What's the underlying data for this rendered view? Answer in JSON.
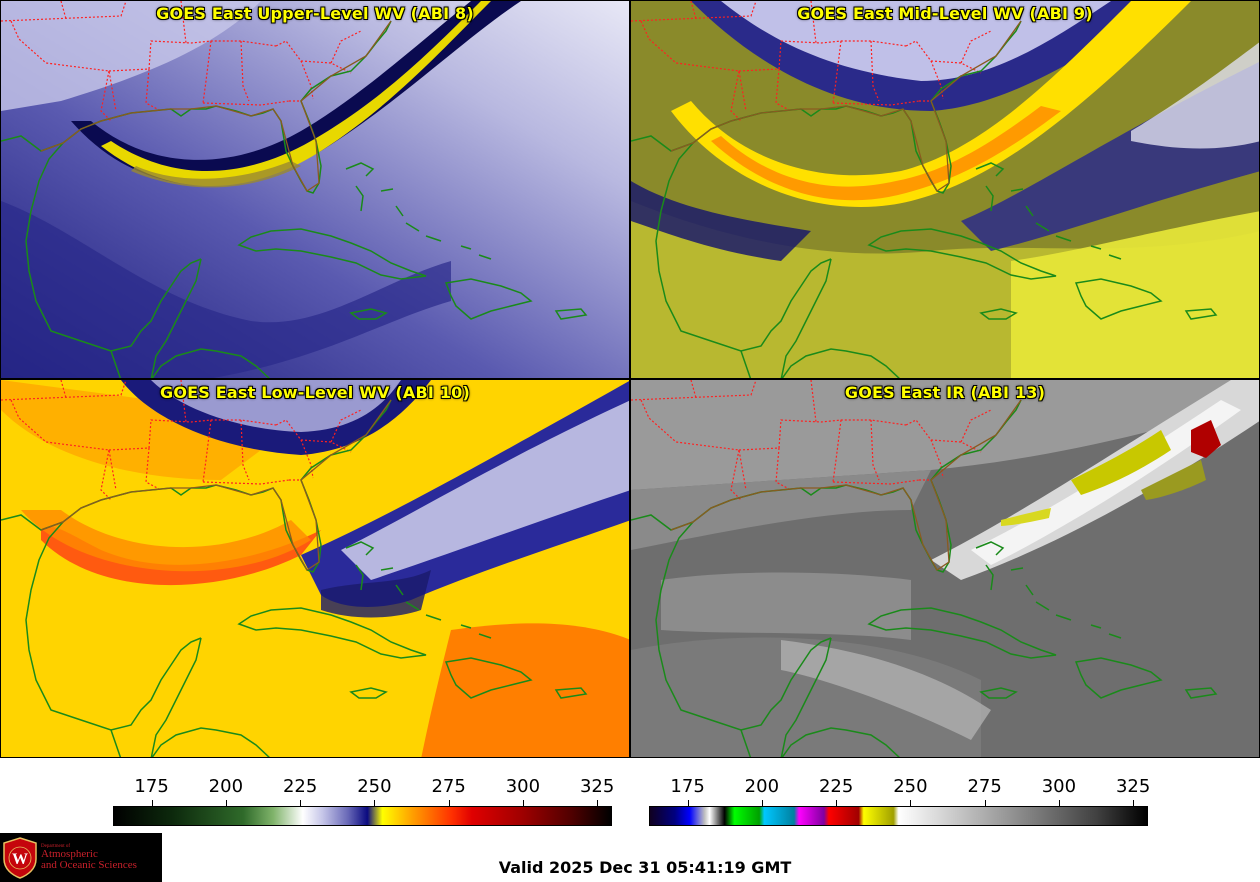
{
  "panels": [
    {
      "id": "upper",
      "title": "GOES East Upper-Level WV (ABI 8)"
    },
    {
      "id": "mid",
      "title": "GOES East Mid-Level WV (ABI 9)"
    },
    {
      "id": "low",
      "title": "GOES East Low-Level WV (ABI 10)"
    },
    {
      "id": "ir",
      "title": "GOES East IR (ABI 13)"
    }
  ],
  "colorbar_wv": {
    "ticks": [
      "175",
      "200",
      "225",
      "250",
      "275",
      "300",
      "325"
    ],
    "range": [
      162,
      330
    ]
  },
  "colorbar_ir": {
    "ticks": [
      "175",
      "200",
      "225",
      "250",
      "275",
      "300",
      "325"
    ],
    "range": [
      162,
      330
    ]
  },
  "logo": {
    "dept": "Department of",
    "line1": "Atmospheric",
    "line2": "and Oceanic Sciences",
    "seal_letter": "W"
  },
  "valid_time": "Valid 2025 Dec 31 05:41:19 GMT",
  "colors": {
    "title": "#ffff00",
    "coastline": "#1a8a1a",
    "state_border": "#ff2020"
  }
}
